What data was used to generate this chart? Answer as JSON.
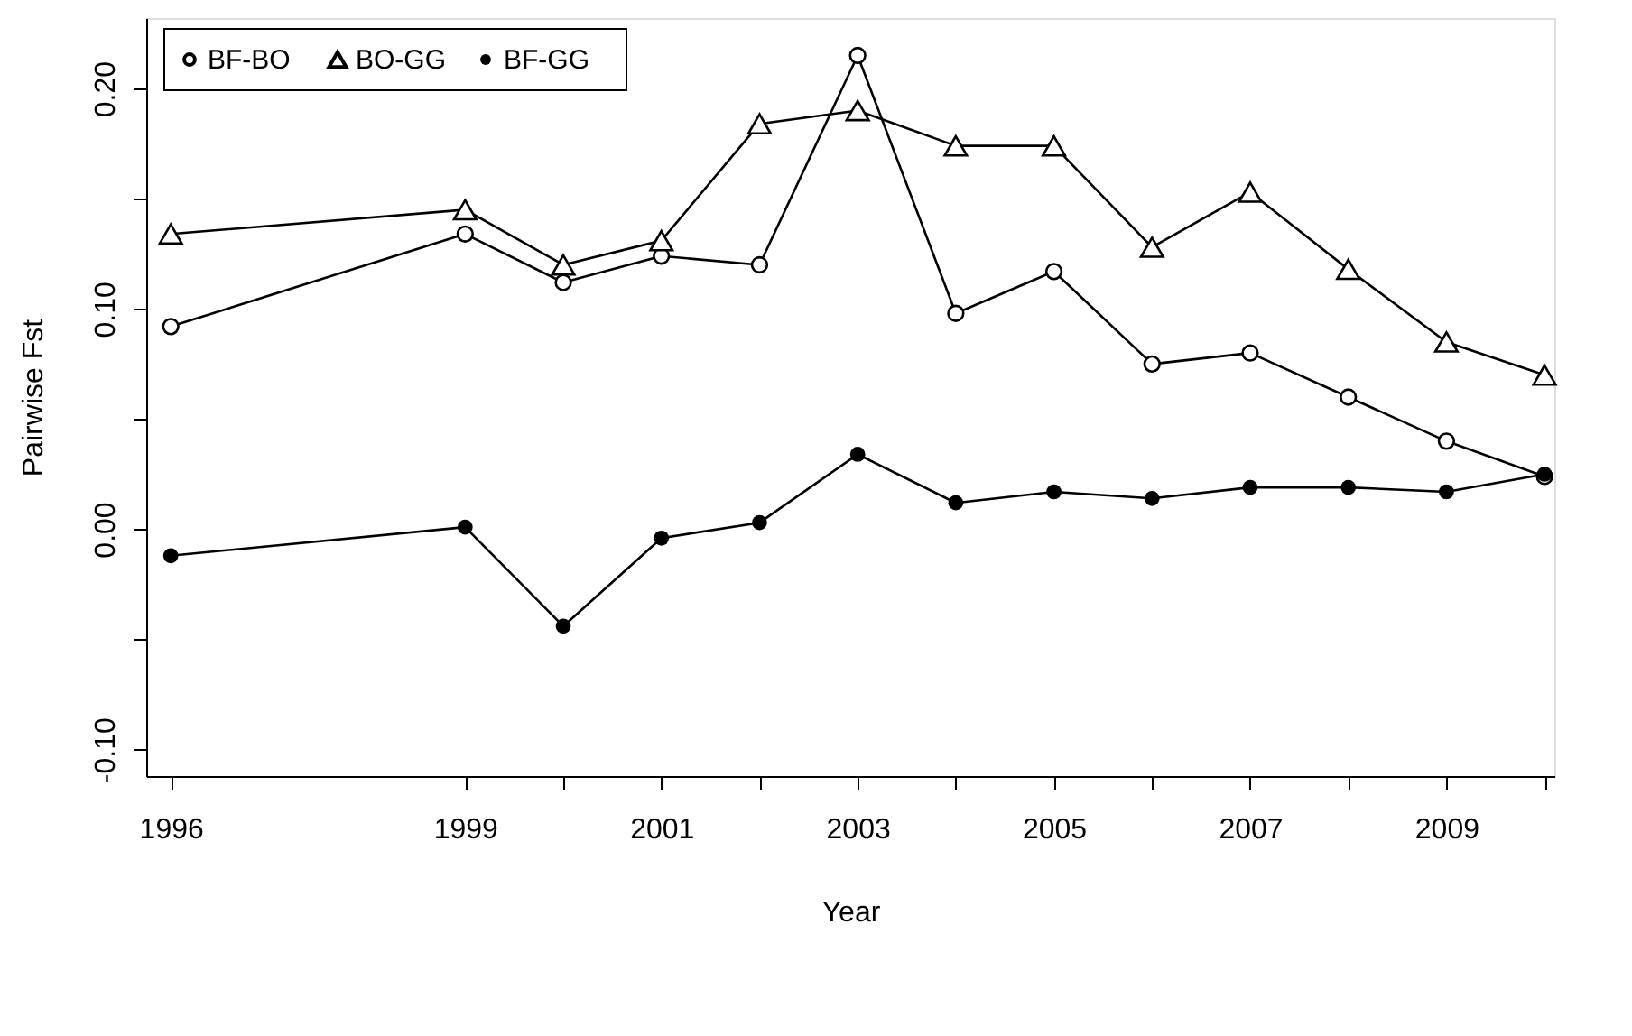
{
  "chart_data": {
    "type": "line",
    "xlabel": "Year",
    "ylabel": "Pairwise Fst",
    "x": [
      1996,
      1999,
      2000,
      2001,
      2002,
      2003,
      2004,
      2005,
      2006,
      2007,
      2008,
      2009,
      2010
    ],
    "series": [
      {
        "name": "BF-BO",
        "color": "#000000",
        "marker": "circle",
        "values": [
          0.092,
          0.134,
          0.112,
          0.124,
          0.12,
          0.215,
          0.098,
          0.117,
          0.075,
          0.08,
          0.06,
          0.04,
          0.024
        ]
      },
      {
        "name": "BO-GG",
        "color": "#000000",
        "marker": "triangle",
        "values": [
          0.134,
          0.145,
          0.12,
          0.131,
          0.184,
          0.19,
          0.174,
          0.174,
          0.128,
          0.153,
          0.118,
          0.085,
          0.07
        ]
      },
      {
        "name": "BF-GG",
        "color": "#000000",
        "marker": "dot",
        "values": [
          -0.012,
          0.001,
          -0.044,
          -0.004,
          0.003,
          0.034,
          0.012,
          0.017,
          0.014,
          0.019,
          0.019,
          0.017,
          0.025
        ]
      }
    ],
    "xlim": [
      1995.75,
      2010.1
    ],
    "ylim": [
      -0.112,
      0.232
    ],
    "xticks": [
      1996,
      1999,
      {
        "value": 2000,
        "label": null
      },
      2001,
      {
        "value": 2002,
        "label": null
      },
      2003,
      {
        "value": 2004,
        "label": null
      },
      2005,
      {
        "value": 2006,
        "label": null
      },
      2007,
      {
        "value": 2008,
        "label": null
      },
      2009,
      {
        "value": 2010,
        "label": null
      }
    ],
    "yticks": [
      {
        "value": -0.1,
        "label": "-0.10"
      },
      {
        "value": -0.05,
        "label": null
      },
      {
        "value": 0,
        "label": "0.00"
      },
      {
        "value": 0.05,
        "label": null
      },
      {
        "value": 0.1,
        "label": "0.10"
      },
      {
        "value": 0.15,
        "label": null
      },
      {
        "value": 0.2,
        "label": "0.20"
      }
    ],
    "grid": false,
    "legend": "top left",
    "line_style": "solid"
  }
}
